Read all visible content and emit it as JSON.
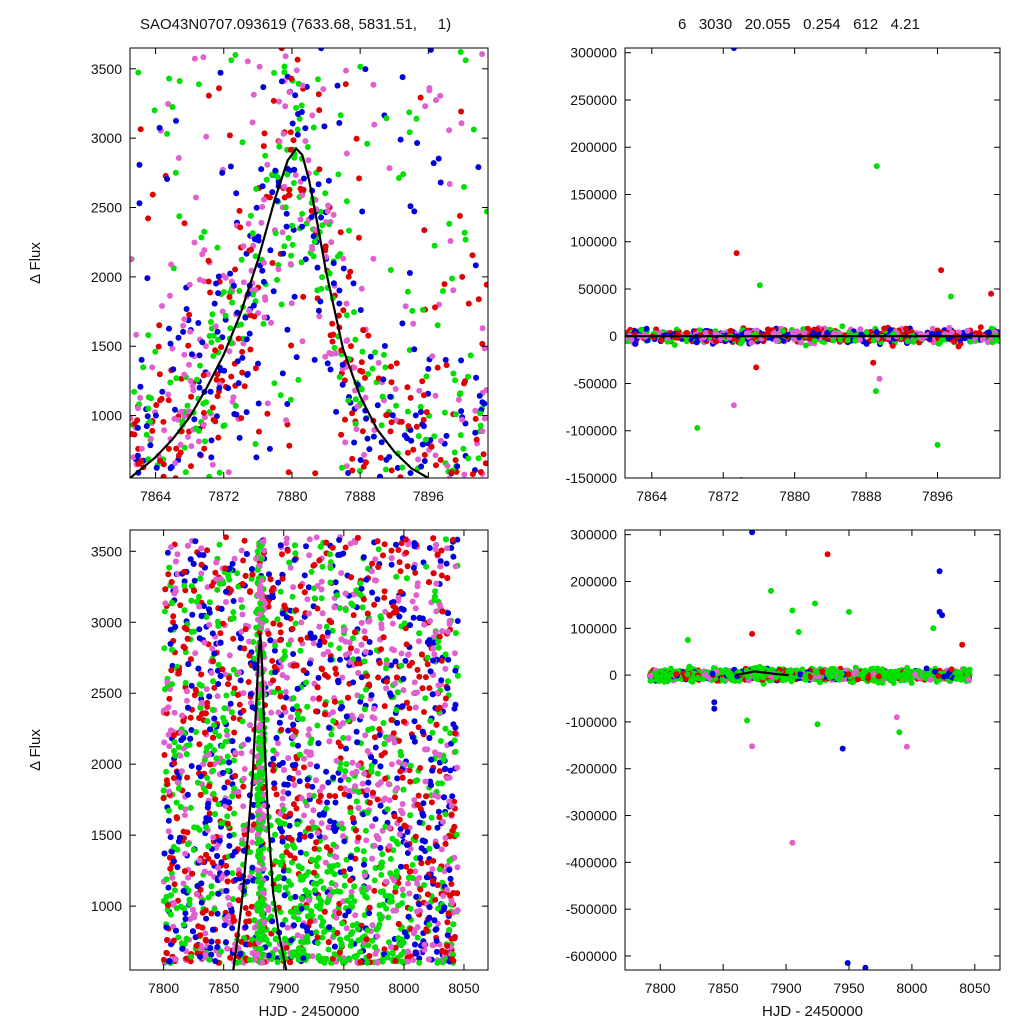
{
  "header": {
    "left_title": "SAO43N0707.093619 (7633.68, 5831.51,     1)",
    "right_title": "6   3030   20.055   0.254   612   4.21"
  },
  "colors": {
    "series": [
      "#e00000",
      "#0000dd",
      "#00e000",
      "#e060d0"
    ],
    "model": "#000000",
    "axis": "#000000"
  },
  "chart_data": [
    {
      "id": "top-left",
      "type": "scatter",
      "title": "",
      "xlabel": "",
      "ylabel": "Δ Flux",
      "xlim": [
        7861,
        7903
      ],
      "ylim": [
        550,
        3650
      ],
      "xticks": [
        7864,
        7872,
        7880,
        7888,
        7896
      ],
      "yticks": [
        1000,
        1500,
        2000,
        2500,
        3000,
        3500
      ],
      "grid": false,
      "legend": "none",
      "model": {
        "type": "line",
        "x": [
          7861,
          7864,
          7866,
          7868,
          7870,
          7872,
          7874,
          7876,
          7878,
          7879.5,
          7880.5,
          7881.2,
          7882,
          7883,
          7884,
          7886,
          7888,
          7890,
          7892,
          7894,
          7896
        ],
        "y": [
          550,
          700,
          830,
          990,
          1200,
          1440,
          1740,
          2120,
          2560,
          2840,
          2925,
          2880,
          2700,
          2380,
          2040,
          1480,
          1140,
          900,
          740,
          620,
          550
        ]
      },
      "points_note": "dense overlapping photometry from four filters"
    },
    {
      "id": "top-right",
      "type": "scatter",
      "title": "",
      "xlabel": "",
      "ylabel": "",
      "xlim": [
        7861,
        7903
      ],
      "ylim": [
        -150000,
        305000
      ],
      "xticks": [
        7864,
        7872,
        7880,
        7888,
        7896
      ],
      "yticks": [
        -150000,
        -100000,
        -50000,
        0,
        50000,
        100000,
        150000,
        200000,
        250000,
        300000
      ],
      "grid": false,
      "legend": "none",
      "model": {
        "type": "line",
        "x": [
          7861,
          7903
        ],
        "y": [
          0,
          0
        ]
      },
      "outliers": [
        {
          "x": 7873.2,
          "y": 305000,
          "c": 1
        },
        {
          "x": 7889.2,
          "y": 180000,
          "c": 2
        },
        {
          "x": 7873.5,
          "y": 88000,
          "c": 0
        },
        {
          "x": 7896.4,
          "y": 70000,
          "c": 0
        },
        {
          "x": 7876.1,
          "y": 54000,
          "c": 2
        },
        {
          "x": 7897.5,
          "y": 42000,
          "c": 2
        },
        {
          "x": 7902.0,
          "y": 45000,
          "c": 0
        },
        {
          "x": 7875.7,
          "y": -33000,
          "c": 0
        },
        {
          "x": 7888.8,
          "y": -28000,
          "c": 0
        },
        {
          "x": 7889.5,
          "y": -45000,
          "c": 3
        },
        {
          "x": 7889.1,
          "y": -58000,
          "c": 2
        },
        {
          "x": 7873.2,
          "y": -73000,
          "c": 3
        },
        {
          "x": 7869.1,
          "y": -97000,
          "c": 2
        },
        {
          "x": 7896.0,
          "y": -115000,
          "c": 2
        },
        {
          "x": 7874.0,
          "y": -152000,
          "c": 3
        }
      ]
    },
    {
      "id": "bottom-left",
      "type": "scatter",
      "title": "",
      "xlabel": "HJD - 2450000",
      "ylabel": "Δ Flux",
      "xlim": [
        7772,
        8070
      ],
      "ylim": [
        550,
        3650
      ],
      "xticks": [
        7800,
        7850,
        7900,
        7950,
        8000,
        8050
      ],
      "yticks": [
        1000,
        1500,
        2000,
        2500,
        3000,
        3500
      ],
      "grid": false,
      "legend": "none",
      "model": {
        "type": "line",
        "x": [
          7858,
          7862,
          7866,
          7870,
          7874,
          7877,
          7879,
          7880.5,
          7882,
          7884,
          7887,
          7891,
          7896,
          7902
        ],
        "y": [
          550,
          800,
          1100,
          1480,
          1900,
          2400,
          2760,
          2925,
          2700,
          2150,
          1600,
          1100,
          800,
          550
        ]
      },
      "points_note": "dense overlapping photometry from four filters"
    },
    {
      "id": "bottom-right",
      "type": "scatter",
      "title": "",
      "xlabel": "HJD - 2450000",
      "ylabel": "",
      "xlim": [
        7772,
        8070
      ],
      "ylim": [
        -630000,
        310000
      ],
      "xticks": [
        7800,
        7850,
        7900,
        7950,
        8000,
        8050
      ],
      "yticks": [
        -600000,
        -500000,
        -400000,
        -300000,
        -200000,
        -100000,
        0,
        100000,
        200000,
        300000
      ],
      "grid": false,
      "legend": "none",
      "model": {
        "type": "line",
        "x": [
          7860,
          7875,
          7890,
          7902
        ],
        "y": [
          0,
          8000,
          3000,
          0
        ]
      },
      "outliers": [
        {
          "x": 7873,
          "y": 305000,
          "c": 1
        },
        {
          "x": 7933,
          "y": 258000,
          "c": 0
        },
        {
          "x": 8022,
          "y": 222000,
          "c": 1
        },
        {
          "x": 7888,
          "y": 180000,
          "c": 2
        },
        {
          "x": 7923,
          "y": 153000,
          "c": 2
        },
        {
          "x": 7905,
          "y": 138000,
          "c": 2
        },
        {
          "x": 7950,
          "y": 135000,
          "c": 2
        },
        {
          "x": 8022,
          "y": 135000,
          "c": 1
        },
        {
          "x": 8024,
          "y": 128000,
          "c": 1
        },
        {
          "x": 8017,
          "y": 100000,
          "c": 2
        },
        {
          "x": 7873,
          "y": 88000,
          "c": 0
        },
        {
          "x": 7910,
          "y": 92000,
          "c": 2
        },
        {
          "x": 7822,
          "y": 75000,
          "c": 2
        },
        {
          "x": 8040,
          "y": 65000,
          "c": 0
        },
        {
          "x": 7843,
          "y": -58000,
          "c": 1
        },
        {
          "x": 7843,
          "y": -72000,
          "c": 1
        },
        {
          "x": 7869,
          "y": -97000,
          "c": 2
        },
        {
          "x": 7873,
          "y": -152000,
          "c": 3
        },
        {
          "x": 7945,
          "y": -157000,
          "c": 1
        },
        {
          "x": 7996,
          "y": -153000,
          "c": 3
        },
        {
          "x": 7990,
          "y": -122000,
          "c": 2
        },
        {
          "x": 7988,
          "y": -90000,
          "c": 3
        },
        {
          "x": 7925,
          "y": -105000,
          "c": 2
        },
        {
          "x": 7905,
          "y": -358000,
          "c": 3
        },
        {
          "x": 7949,
          "y": -615000,
          "c": 1
        },
        {
          "x": 7963,
          "y": -625000,
          "c": 1
        }
      ]
    }
  ]
}
